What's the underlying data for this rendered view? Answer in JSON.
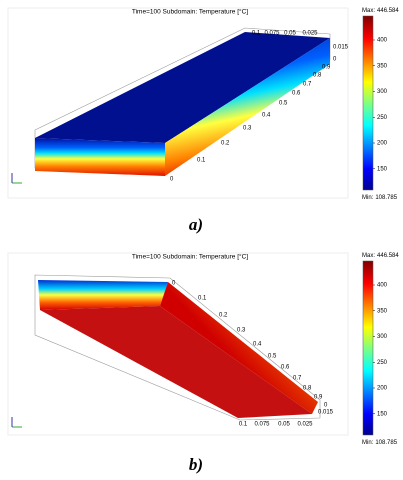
{
  "panels": [
    {
      "title": "Time=100   Subdomain: Temperature [°C]",
      "colorbar": {
        "max_label": "Max:",
        "max": 446.584,
        "min_label": "Min:",
        "min": 108.785,
        "ticks": [
          400,
          350,
          300,
          250,
          200,
          150
        ]
      },
      "length_labels": [
        "0",
        "0.1",
        "0.2",
        "0.3",
        "0.4",
        "0.5",
        "0.6",
        "0.7",
        "0.8",
        "0.9"
      ],
      "thickness_labels": [
        "0",
        "0.015"
      ],
      "width_labels": [
        "0.1",
        "0.075",
        "0.05",
        "0.025"
      ],
      "caption": "a)"
    },
    {
      "title": "Time=100   Subdomain: Temperature [°C]",
      "colorbar": {
        "max_label": "Max:",
        "max": 446.584,
        "min_label": "Min:",
        "min": 108.785,
        "ticks": [
          400,
          350,
          300,
          250,
          200,
          150
        ]
      },
      "length_labels": [
        "0",
        "0.1",
        "0.2",
        "0.3",
        "0.4",
        "0.5",
        "0.6",
        "0.7",
        "0.8",
        "0.9"
      ],
      "thickness_labels": [
        "0",
        "0.015"
      ],
      "width_labels": [
        "0.1",
        "0.075",
        "0.05",
        "0.025"
      ],
      "caption": "b)"
    }
  ]
}
